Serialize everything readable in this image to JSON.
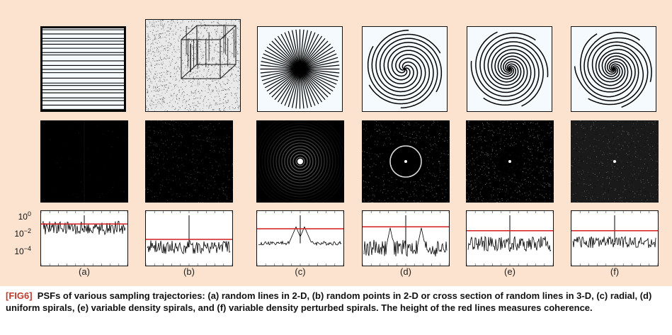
{
  "figure": {
    "panel_labels": [
      "(a)",
      "(b)",
      "(c)",
      "(d)",
      "(e)",
      "(f)"
    ],
    "y_ticks": [
      {
        "base": "10",
        "exp": "0"
      },
      {
        "base": "10",
        "exp": "−2"
      },
      {
        "base": "10",
        "exp": "−4"
      }
    ],
    "colors": {
      "background": "#fbe3cf",
      "coherence_line": "#d21e1e",
      "tag": "#c0392b"
    }
  },
  "caption": {
    "tag": "[FIG6]",
    "text": "PSFs of various sampling trajectories: (a) random lines in 2-D, (b) random points in 2-D or cross section of random lines in 3-D, (c) radial, (d) uniform spirals, (e) variable density spirals, and (f) variable density perturbed spirals. The height of the red lines measures coherence."
  }
}
